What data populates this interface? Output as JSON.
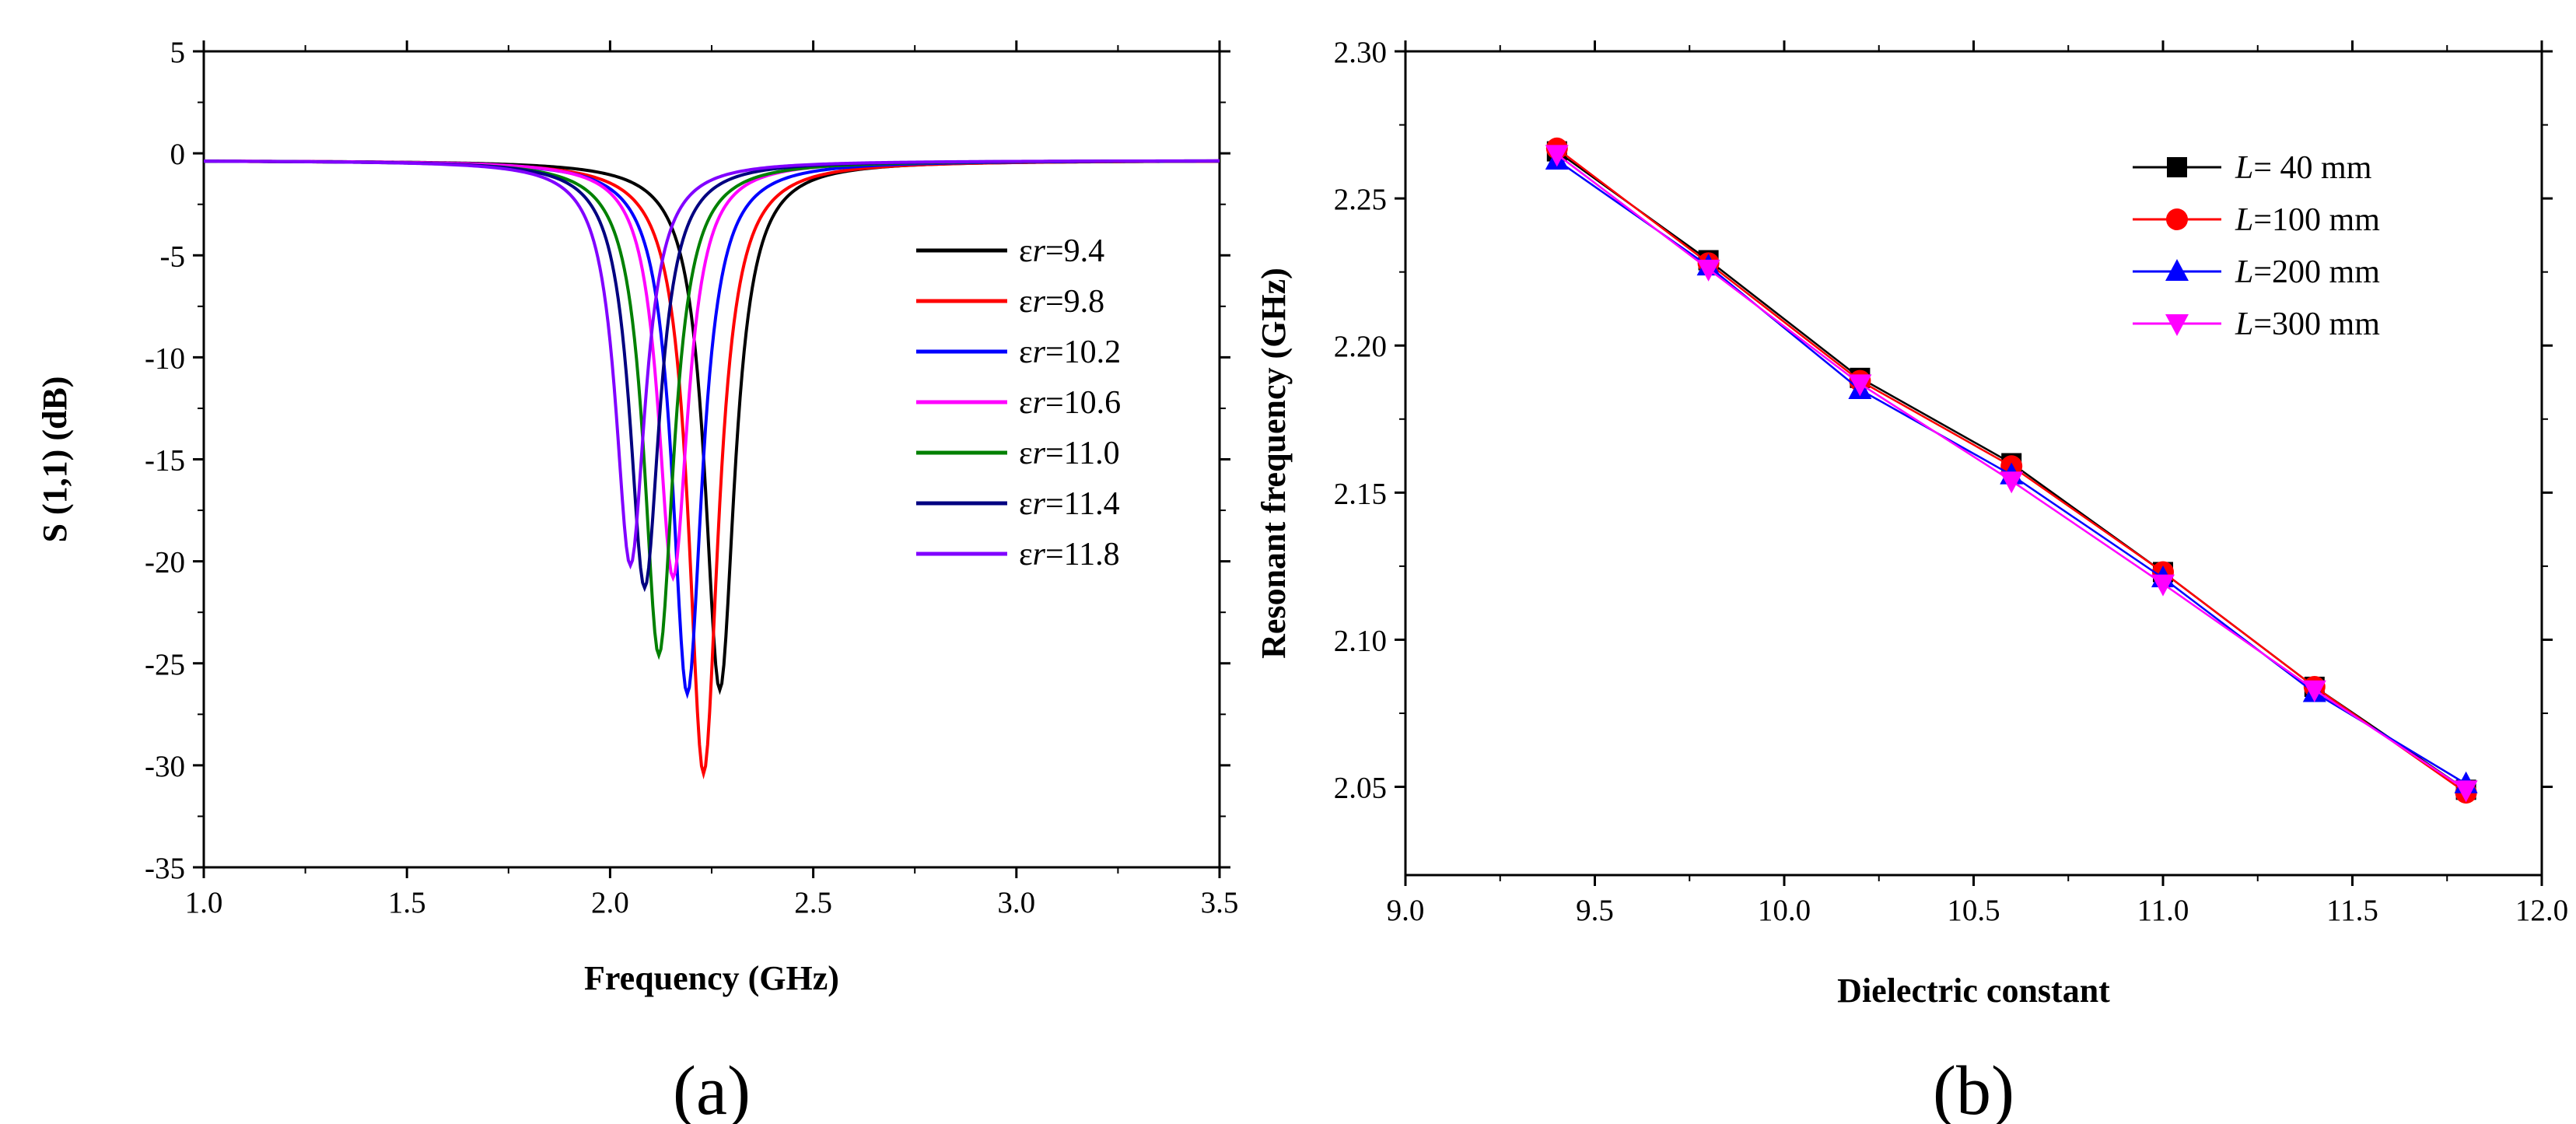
{
  "chart_data": [
    {
      "type": "line",
      "panel_label": "(a)",
      "xlabel": "Frequency (GHz)",
      "ylabel": "S (1,1) (dB)",
      "xlim": [
        1.0,
        3.5
      ],
      "ylim": [
        -35,
        5
      ],
      "xticks": [
        "1.0",
        "1.5",
        "2.0",
        "2.5",
        "3.0",
        "3.5"
      ],
      "yticks": [
        "5",
        "0",
        "-5",
        "-10",
        "-15",
        "-20",
        "-25",
        "-30",
        "-35"
      ],
      "legend_position": "right",
      "series": [
        {
          "prefix": "εr",
          "name": "=9.4",
          "color": "#000000",
          "f0": 2.27,
          "min_db": -26.3
        },
        {
          "prefix": "εr",
          "name": "=9.8",
          "color": "#ff0000",
          "f0": 2.23,
          "min_db": -30.4
        },
        {
          "prefix": "εr",
          "name": "=10.2",
          "color": "#0000ff",
          "f0": 2.19,
          "min_db": -26.5
        },
        {
          "prefix": "εr",
          "name": "=10.6",
          "color": "#ff00ff",
          "f0": 2.155,
          "min_db": -20.8
        },
        {
          "prefix": "εr",
          "name": "=11.0",
          "color": "#008000",
          "f0": 2.12,
          "min_db": -24.6
        },
        {
          "prefix": "εr",
          "name": "=11.4",
          "color": "#000080",
          "f0": 2.085,
          "min_db": -21.3
        },
        {
          "prefix": "εr",
          "name": "=11.8",
          "color": "#8000ff",
          "f0": 2.05,
          "min_db": -20.2
        }
      ]
    },
    {
      "type": "line",
      "panel_label": "(b)",
      "xlabel": "Dielectric constant",
      "ylabel": "Resonant frequency (GHz)",
      "xlim": [
        9.0,
        12.0
      ],
      "ylim": [
        2.02,
        2.3
      ],
      "xticks": [
        "9.0",
        "9.5",
        "10.0",
        "10.5",
        "11.0",
        "11.5",
        "12.0"
      ],
      "yticks": [
        "2.05",
        "2.10",
        "2.15",
        "2.20",
        "2.25",
        "2.30"
      ],
      "legend_position": "top-right",
      "x": [
        9.4,
        9.8,
        10.2,
        10.6,
        11.0,
        11.4,
        11.8
      ],
      "series": [
        {
          "prefix": "L",
          "name": "= 40 mm",
          "color": "#000000",
          "marker": "square",
          "values": [
            2.266,
            2.229,
            2.189,
            2.16,
            2.123,
            2.084,
            2.049
          ]
        },
        {
          "prefix": "L",
          "name": "=100 mm",
          "color": "#ff0000",
          "marker": "circle",
          "values": [
            2.267,
            2.228,
            2.188,
            2.159,
            2.123,
            2.084,
            2.048
          ]
        },
        {
          "prefix": "L",
          "name": "=200 mm",
          "color": "#0000ff",
          "marker": "triangle-up",
          "values": [
            2.263,
            2.227,
            2.185,
            2.156,
            2.121,
            2.082,
            2.051
          ]
        },
        {
          "prefix": "L",
          "name": "=300 mm",
          "color": "#ff00ff",
          "marker": "triangle-down",
          "values": [
            2.265,
            2.226,
            2.187,
            2.154,
            2.119,
            2.083,
            2.049
          ]
        }
      ]
    }
  ]
}
